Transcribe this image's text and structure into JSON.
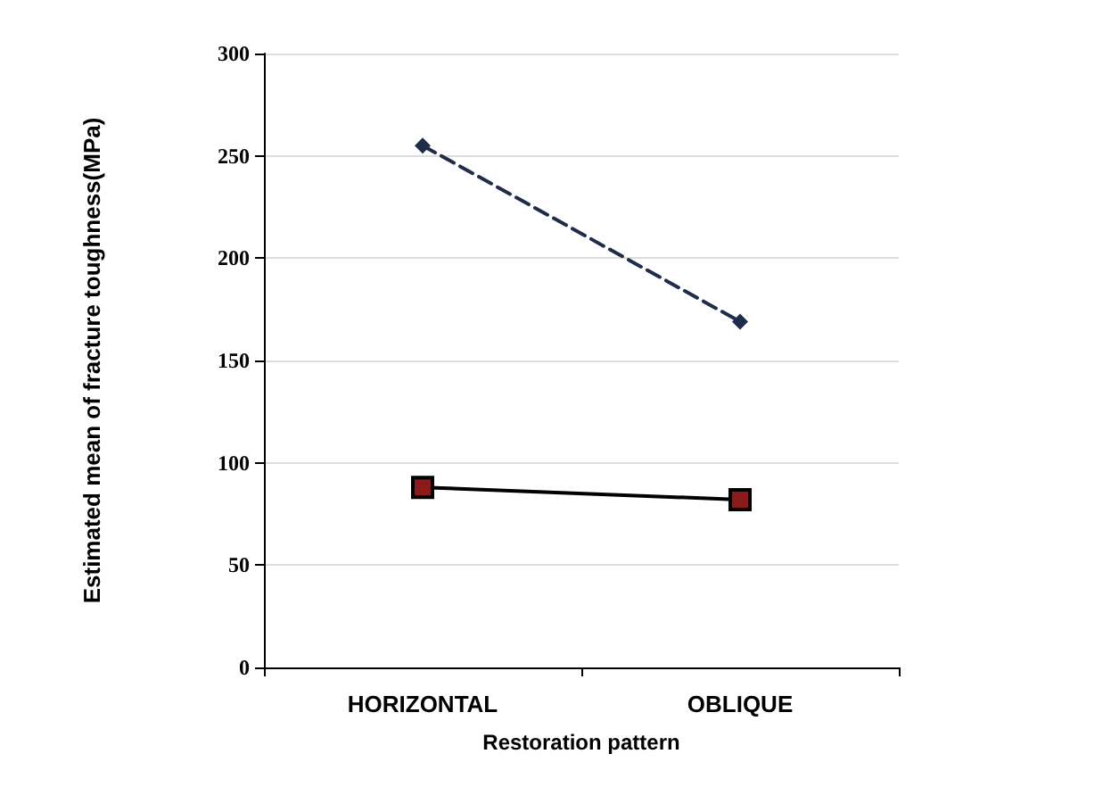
{
  "chart_data": {
    "type": "line",
    "xlabel": "Restoration pattern",
    "ylabel": "Estimated mean of fracture toughness(MPa)",
    "categories": [
      "HORIZONTAL",
      "OBLIQUE"
    ],
    "series": [
      {
        "color": "#1f2d4a",
        "values": [
          255,
          169
        ],
        "marker": "diamond",
        "line_style": "dashed"
      },
      {
        "color": "#000000",
        "values": [
          88,
          82
        ],
        "marker": "square",
        "line_style": "solid"
      }
    ],
    "ylim": [
      0,
      300
    ],
    "yticks": [
      0,
      50,
      100,
      150,
      200,
      250,
      300
    ],
    "grid": "y"
  }
}
